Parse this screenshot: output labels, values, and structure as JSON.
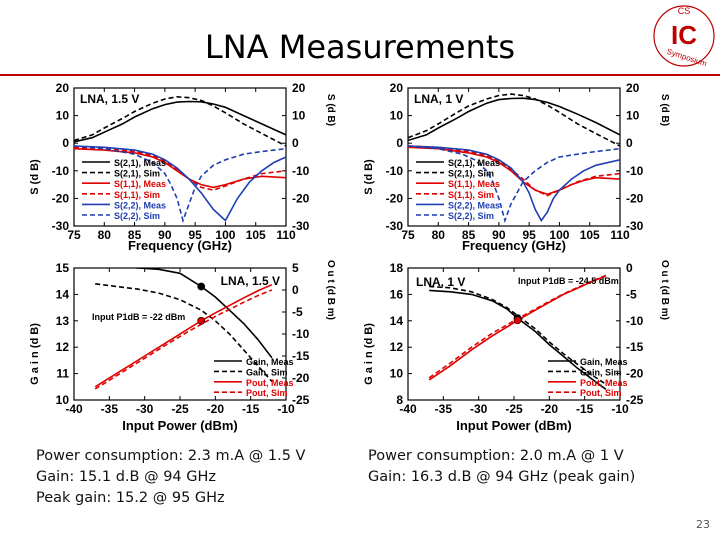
{
  "slide": {
    "title": "LNA Measurements",
    "page_number": "23",
    "logo_text": {
      "top": "CS",
      "main": "IC",
      "bottom": "Symposium"
    }
  },
  "captions": {
    "left": [
      "Power consumption: 2.3 m.A @ 1.5 V",
      "Gain: 15.1 d.B @ 94 GHz",
      "Peak gain: 15.2 @ 95 GHz"
    ],
    "right": [
      "Power consumption: 2.0 m.A @ 1 V",
      "Gain: 16.3 d.B @ 94 GHz (peak gain)"
    ]
  },
  "chart_data": [
    {
      "type": "line",
      "panel": "top-left",
      "annotation": "LNA, 1.5 V",
      "xlabel": "Frequency (GHz)",
      "ylabel_left": "S (d B)",
      "ylabel_right": "S (d B)",
      "xlim": [
        75,
        110
      ],
      "xticks": [
        75,
        80,
        85,
        90,
        95,
        100,
        105,
        110
      ],
      "ylim_left": [
        -30,
        20
      ],
      "yticks_left": [
        -30,
        -20,
        -10,
        0,
        10,
        20
      ],
      "ylim_right": [
        -30,
        20
      ],
      "yticks_right": [
        -30,
        -20,
        -10,
        0,
        10,
        20
      ],
      "legend_position": "middle-left",
      "grid": false,
      "series": [
        {
          "name": "S(2,1), Meas",
          "color": "#000000",
          "dash": "solid",
          "axis": "left",
          "x": [
            75,
            78,
            80,
            83,
            85,
            88,
            90,
            92,
            94,
            96,
            98,
            100,
            103,
            106,
            110
          ],
          "y": [
            0.5,
            2,
            4,
            7,
            9.5,
            12.5,
            14,
            14.9,
            15.1,
            15,
            14.2,
            13,
            10,
            7,
            3
          ]
        },
        {
          "name": "S(2,1), Sim",
          "color": "#000000",
          "dash": "dashed",
          "axis": "left",
          "x": [
            75,
            78,
            80,
            83,
            85,
            88,
            90,
            92,
            94,
            96,
            98,
            100,
            103,
            106,
            110
          ],
          "y": [
            1,
            3,
            5.5,
            9,
            11.5,
            14.5,
            16,
            16.8,
            16.5,
            15.5,
            13.5,
            11,
            7,
            3.5,
            -1
          ]
        },
        {
          "name": "S(1,1), Meas",
          "color": "#e00000",
          "dash": "solid",
          "axis": "right",
          "x": [
            75,
            80,
            85,
            88,
            90,
            92,
            94,
            96,
            98,
            100,
            103,
            106,
            110
          ],
          "y": [
            -2,
            -2.5,
            -3.5,
            -5,
            -7,
            -10,
            -13,
            -15,
            -16,
            -15,
            -13,
            -12,
            -12.5
          ]
        },
        {
          "name": "S(1,1), Sim",
          "color": "#e00000",
          "dash": "dashed",
          "axis": "right",
          "x": [
            75,
            80,
            85,
            88,
            90,
            92,
            94,
            96,
            98,
            100,
            103,
            106,
            110
          ],
          "y": [
            -1.5,
            -2,
            -3,
            -4.5,
            -6.5,
            -9.5,
            -13,
            -16,
            -17,
            -15.5,
            -13,
            -11,
            -10
          ]
        },
        {
          "name": "S(2,2), Meas",
          "color": "#1f3fb0",
          "dash": "solid",
          "axis": "right",
          "x": [
            75,
            80,
            85,
            88,
            90,
            92,
            94,
            96,
            98,
            99,
            100,
            101,
            102,
            104,
            106,
            108,
            110
          ],
          "y": [
            -1,
            -1.5,
            -2.5,
            -4,
            -6,
            -9,
            -13,
            -18,
            -24,
            -26,
            -28,
            -24,
            -20,
            -14,
            -10,
            -7,
            -5
          ]
        },
        {
          "name": "S(2,2), Sim",
          "color": "#1f3fb0",
          "dash": "dashed",
          "axis": "right",
          "x": [
            75,
            80,
            85,
            88,
            90,
            91,
            92,
            93,
            94,
            95,
            96,
            98,
            100,
            103,
            106,
            110
          ],
          "y": [
            -1,
            -2,
            -4,
            -7,
            -11,
            -15,
            -20,
            -28,
            -22,
            -16,
            -12,
            -8,
            -6,
            -4,
            -3,
            -2
          ]
        }
      ]
    },
    {
      "type": "line",
      "panel": "top-right",
      "annotation": "LNA, 1 V",
      "xlabel": "Frequency (GHz)",
      "ylabel_left": "S (d B)",
      "ylabel_right": "S (d B)",
      "xlim": [
        75,
        110
      ],
      "xticks": [
        75,
        80,
        85,
        90,
        95,
        100,
        105,
        110
      ],
      "ylim_left": [
        -30,
        20
      ],
      "yticks_left": [
        -30,
        -20,
        -10,
        0,
        10,
        20
      ],
      "ylim_right": [
        -30,
        20
      ],
      "yticks_right": [
        -30,
        -20,
        -10,
        0,
        10,
        20
      ],
      "legend_position": "middle-left",
      "grid": false,
      "series": [
        {
          "name": "S(2,1), Meas",
          "color": "#000000",
          "dash": "solid",
          "axis": "left",
          "x": [
            75,
            78,
            80,
            83,
            85,
            88,
            90,
            92,
            94,
            96,
            98,
            100,
            103,
            106,
            110
          ],
          "y": [
            1,
            3,
            5.5,
            9,
            11.5,
            14.5,
            15.8,
            16.2,
            16.3,
            15.8,
            14.8,
            13.3,
            10.5,
            7.5,
            3
          ]
        },
        {
          "name": "S(2,1), Sim",
          "color": "#000000",
          "dash": "dashed",
          "axis": "left",
          "x": [
            75,
            78,
            80,
            83,
            85,
            88,
            90,
            92,
            94,
            96,
            98,
            100,
            103,
            106,
            110
          ],
          "y": [
            2,
            4.5,
            7,
            11,
            13.5,
            16,
            17.3,
            17.8,
            17.3,
            16,
            13.8,
            11.2,
            7,
            3.5,
            -1
          ]
        },
        {
          "name": "S(1,1), Meas",
          "color": "#e00000",
          "dash": "solid",
          "axis": "right",
          "x": [
            75,
            80,
            85,
            88,
            90,
            92,
            94,
            96,
            98,
            100,
            102,
            104,
            106,
            110
          ],
          "y": [
            -1.5,
            -2,
            -3.5,
            -5,
            -7,
            -10,
            -14,
            -17,
            -18.5,
            -17,
            -15,
            -13.5,
            -12.5,
            -13
          ]
        },
        {
          "name": "S(1,1), Sim",
          "color": "#e00000",
          "dash": "dashed",
          "axis": "right",
          "x": [
            75,
            80,
            85,
            88,
            90,
            92,
            94,
            96,
            98,
            100,
            103,
            106,
            110
          ],
          "y": [
            -1,
            -1.5,
            -3,
            -4.5,
            -6.5,
            -9.5,
            -13,
            -17,
            -19,
            -17,
            -14,
            -12,
            -11
          ]
        },
        {
          "name": "S(2,2), Meas",
          "color": "#1f3fb0",
          "dash": "solid",
          "axis": "right",
          "x": [
            75,
            80,
            85,
            88,
            90,
            92,
            94,
            95,
            96,
            97,
            98,
            99,
            100,
            102,
            104,
            106,
            110
          ],
          "y": [
            -1,
            -1.5,
            -2.5,
            -4,
            -6,
            -9,
            -14,
            -18,
            -24,
            -28,
            -25,
            -20,
            -17,
            -13,
            -10,
            -8,
            -6
          ]
        },
        {
          "name": "S(2,2), Sim",
          "color": "#1f3fb0",
          "dash": "dashed",
          "axis": "right",
          "x": [
            75,
            80,
            84,
            86,
            88,
            89,
            90,
            91,
            92,
            94,
            96,
            98,
            100,
            103,
            106,
            110
          ],
          "y": [
            -1,
            -2,
            -4,
            -6,
            -10,
            -14,
            -20,
            -28,
            -22,
            -14,
            -10,
            -7,
            -5,
            -4,
            -3,
            -2
          ]
        }
      ]
    },
    {
      "type": "line",
      "panel": "bottom-left",
      "annotation": "LNA, 1.5 V",
      "annotation2": "Input P1dB = -22 dBm",
      "xlabel": "Input Power (dBm)",
      "ylabel_left": "G a i n (d B)",
      "ylabel_right": "O u t (d B m)",
      "xlim": [
        -40,
        -10
      ],
      "xticks": [
        -40,
        -35,
        -30,
        -25,
        -20,
        -15,
        -10
      ],
      "ylim_left": [
        10,
        15
      ],
      "yticks_left": [
        10,
        11,
        12,
        13,
        14,
        15
      ],
      "ylim_right": [
        -25,
        5
      ],
      "yticks_right": [
        -25,
        -20,
        -15,
        -10,
        -5,
        0,
        5
      ],
      "legend_position": "bottom-right",
      "grid": false,
      "markers": [
        {
          "axis": "left",
          "x": -22,
          "y": 14.3,
          "color": "#000000"
        },
        {
          "axis": "right",
          "x": -22,
          "y": -7,
          "color": "#e00000"
        }
      ],
      "series": [
        {
          "name": "Gain, Meas",
          "color": "#000000",
          "dash": "solid",
          "axis": "left",
          "x": [
            -37,
            -34,
            -31,
            -28,
            -25,
            -22,
            -20,
            -18,
            -16,
            -14,
            -12
          ],
          "y": [
            15.1,
            15.1,
            15.0,
            14.95,
            14.8,
            14.3,
            13.9,
            13.4,
            12.9,
            12.3,
            11.6
          ]
        },
        {
          "name": "Gain, Sim",
          "color": "#000000",
          "dash": "dashed",
          "axis": "left",
          "x": [
            -37,
            -34,
            -31,
            -28,
            -25,
            -22,
            -20,
            -18,
            -16,
            -14,
            -12
          ],
          "y": [
            14.4,
            14.3,
            14.2,
            14.05,
            13.8,
            13.4,
            13.0,
            12.5,
            11.9,
            11.3,
            10.7
          ]
        },
        {
          "name": "Pout, Meas",
          "color": "#e00000",
          "dash": "solid",
          "axis": "right",
          "x": [
            -37,
            -33,
            -30,
            -27,
            -24,
            -22,
            -20,
            -18,
            -16,
            -14,
            -12
          ],
          "y": [
            -22,
            -18,
            -15,
            -12,
            -9,
            -7,
            -5.2,
            -3.5,
            -1.8,
            -0.2,
            1.2
          ]
        },
        {
          "name": "Pout, Sim",
          "color": "#e00000",
          "dash": "dashed",
          "axis": "right",
          "x": [
            -37,
            -33,
            -30,
            -27,
            -24,
            -22,
            -20,
            -18,
            -16,
            -14,
            -12
          ],
          "y": [
            -22.5,
            -18.5,
            -15.5,
            -12.5,
            -9.6,
            -7.8,
            -6,
            -4.4,
            -2.8,
            -1.3,
            0
          ]
        }
      ]
    },
    {
      "type": "line",
      "panel": "bottom-right",
      "annotation": "LNA, 1 V",
      "annotation2": "Input P1dB = -24.5 dBm",
      "xlabel": "Input Power (dBm)",
      "ylabel_left": "G a i n (d B)",
      "ylabel_right": "O u t (d B m)",
      "xlim": [
        -40,
        -10
      ],
      "xticks": [
        -40,
        -35,
        -30,
        -25,
        -20,
        -15,
        -10
      ],
      "ylim_left": [
        8,
        18
      ],
      "yticks_left": [
        8,
        10,
        12,
        14,
        16,
        18
      ],
      "ylim_right": [
        -25,
        0
      ],
      "yticks_right": [
        -25,
        -20,
        -15,
        -10,
        -5,
        0
      ],
      "legend_position": "bottom-right",
      "grid": false,
      "markers": [
        {
          "axis": "left",
          "x": -24.5,
          "y": 14.2,
          "color": "#000000"
        },
        {
          "axis": "right",
          "x": -24.5,
          "y": -9.9,
          "color": "#e00000"
        }
      ],
      "series": [
        {
          "name": "Gain, Meas",
          "color": "#000000",
          "dash": "solid",
          "axis": "left",
          "x": [
            -37,
            -34,
            -31,
            -28,
            -26,
            -24.5,
            -22,
            -20,
            -18,
            -16,
            -14,
            -12
          ],
          "y": [
            16.3,
            16.2,
            16.0,
            15.5,
            14.9,
            14.2,
            13.2,
            12.2,
            11.3,
            10.4,
            9.6,
            8.8
          ]
        },
        {
          "name": "Gain, Sim",
          "color": "#000000",
          "dash": "dashed",
          "axis": "left",
          "x": [
            -37,
            -34,
            -31,
            -28,
            -26,
            -24.5,
            -22,
            -20,
            -18,
            -16,
            -14,
            -12
          ],
          "y": [
            16.6,
            16.5,
            16.2,
            15.6,
            15.0,
            14.4,
            13.4,
            12.4,
            11.5,
            10.7,
            9.9,
            9.2
          ]
        },
        {
          "name": "Pout, Meas",
          "color": "#e00000",
          "dash": "solid",
          "axis": "right",
          "x": [
            -37,
            -34,
            -31,
            -28,
            -26,
            -24.5,
            -22,
            -20,
            -18,
            -16,
            -14,
            -12
          ],
          "y": [
            -21.2,
            -18.5,
            -15.5,
            -12.8,
            -11.2,
            -9.9,
            -8,
            -6.5,
            -5,
            -3.8,
            -2.6,
            -1.5
          ]
        },
        {
          "name": "Pout, Sim",
          "color": "#e00000",
          "dash": "dashed",
          "axis": "right",
          "x": [
            -37,
            -34,
            -31,
            -28,
            -26,
            -24.5,
            -22,
            -20,
            -18,
            -16,
            -14,
            -12
          ],
          "y": [
            -20.8,
            -18,
            -15,
            -12.3,
            -10.8,
            -9.6,
            -7.8,
            -6.3,
            -4.9,
            -3.7,
            -2.5,
            -1.4
          ]
        }
      ]
    }
  ]
}
